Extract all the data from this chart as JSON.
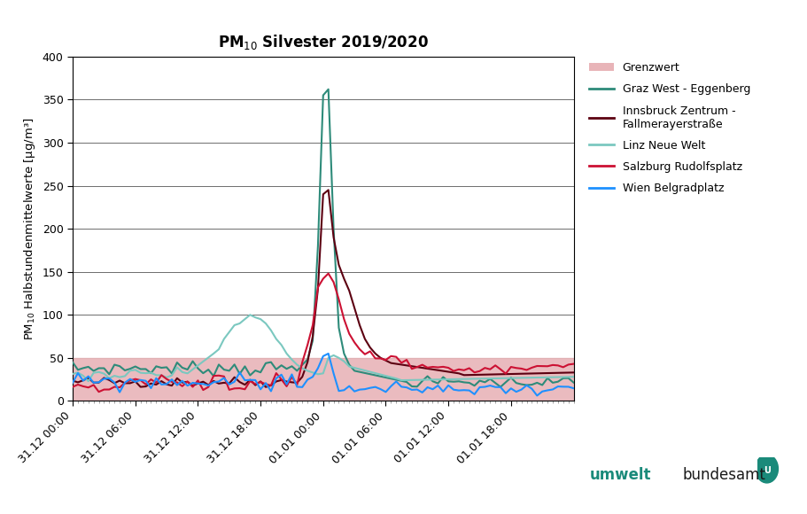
{
  "title": "PM$_{10}$ Silvester 2019/2020",
  "ylabel": "PM$_{10}$ Halbstundenmittelwerte [μg/m³]",
  "ylim": [
    0,
    400
  ],
  "yticks": [
    0,
    50,
    100,
    150,
    200,
    250,
    300,
    350,
    400
  ],
  "grenzwert": 50,
  "grenzwert_color": "#e8b4b8",
  "background_color": "#ffffff",
  "tick_labels": [
    "31.12 00:00",
    "31.12 06:00",
    "31.12 12:00",
    "31.12 18:00",
    "01.01 00:00",
    "01.01 06:00",
    "01.01 12:00",
    "01.01 18:00"
  ],
  "series": {
    "Graz West - Eggenberg": {
      "color": "#2e8b7a",
      "linewidth": 1.5
    },
    "Innsbruck Zentrum -\nFallmerayerstraße": {
      "color": "#5c0011",
      "linewidth": 1.5
    },
    "Linz Neue Welt": {
      "color": "#7bc8c0",
      "linewidth": 1.5
    },
    "Salzburg Rudolfsplatz": {
      "color": "#cc1133",
      "linewidth": 1.5
    },
    "Wien Belgradplatz": {
      "color": "#1e90ff",
      "linewidth": 1.5
    }
  },
  "legend_labels": [
    "Grenzwert",
    "Graz West - Eggenberg",
    "Innsbruck Zentrum -\nFallmerayerstraße",
    "Linz Neue Welt",
    "Salzburg Rudolfsplatz",
    "Wien Belgradplatz"
  ]
}
